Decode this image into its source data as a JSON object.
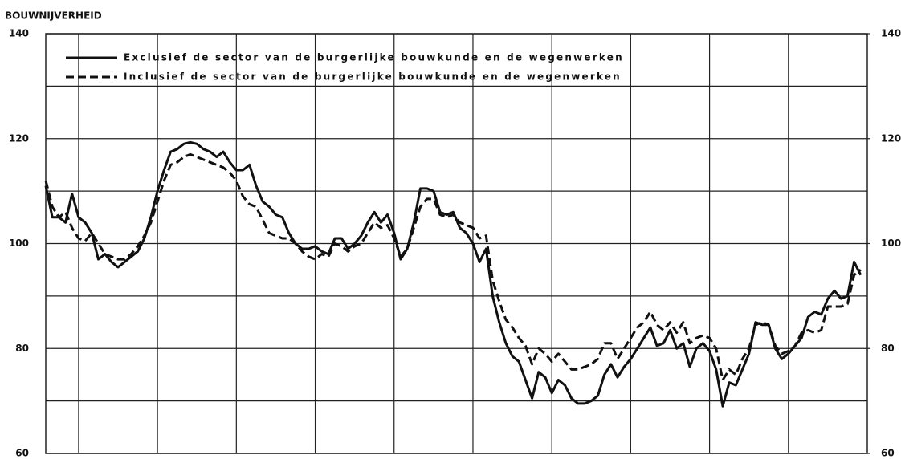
{
  "chart_data": {
    "type": "line",
    "title": "BOUWNIJVERHEID",
    "x": [
      0,
      1,
      2,
      3,
      4,
      5,
      6,
      7,
      8,
      9,
      10,
      11,
      12,
      13,
      14,
      15,
      16,
      17,
      18,
      19,
      20,
      21,
      22,
      23,
      24,
      25,
      26,
      27,
      28,
      29,
      30,
      31,
      32,
      33,
      34,
      35,
      36,
      37,
      38,
      39,
      40,
      41,
      42,
      43,
      44,
      45,
      46,
      47,
      48,
      49,
      50,
      51,
      52,
      53,
      54,
      55,
      56,
      57,
      58,
      59,
      60,
      61,
      62,
      63,
      64,
      65,
      66,
      67,
      68,
      69,
      70,
      71,
      72,
      73,
      74,
      75,
      76,
      77,
      78,
      79,
      80,
      81,
      82,
      83,
      84,
      85,
      86,
      87,
      88,
      89,
      90,
      91,
      92,
      93,
      94,
      95,
      96,
      97,
      98,
      99,
      100,
      101,
      102,
      103,
      104,
      105,
      106,
      107,
      108,
      109,
      110,
      111,
      112,
      113,
      114,
      115,
      116,
      117,
      118,
      119,
      120,
      121,
      122,
      123,
      124
    ],
    "xlim": [
      0,
      125
    ],
    "xgrid": [
      5,
      17,
      29,
      41,
      53,
      65,
      77,
      89,
      101,
      113
    ],
    "series": [
      {
        "name": "Exclusief de sector van de burgerlijke bouwkunde en de wegenwerken",
        "color": "#111111",
        "dash": "solid",
        "values": [
          111,
          105,
          105,
          104,
          109.5,
          105,
          104,
          102,
          97,
          98,
          96.5,
          95.5,
          96.5,
          97.5,
          98.5,
          101,
          105,
          110,
          114,
          117.5,
          118,
          119,
          119.3,
          119,
          118,
          117.5,
          116.5,
          117.5,
          115.5,
          114,
          114,
          115,
          111,
          108,
          107,
          105.5,
          105,
          102,
          100,
          99,
          99,
          99.5,
          98.5,
          98,
          101,
          101,
          99,
          100,
          101.5,
          104,
          106,
          104,
          105.5,
          102,
          97,
          99,
          104,
          110.5,
          110.5,
          110,
          106,
          105.5,
          106,
          103,
          102,
          100,
          96.5,
          99,
          90,
          85,
          81,
          78.5,
          77.5,
          74,
          70.5,
          75.5,
          74.5,
          71.5,
          74,
          73,
          70.5,
          69.5,
          69.5,
          70,
          71,
          75,
          77,
          74.5,
          76.5,
          78,
          80,
          82,
          84,
          80.5,
          81,
          83.5,
          80,
          81,
          76.5,
          80,
          81,
          79.5,
          76,
          69,
          73.5,
          73,
          76,
          79,
          85,
          84.5,
          84.5,
          80,
          78,
          79,
          80.5,
          82,
          86,
          87,
          86.5,
          89.5,
          91,
          89.5,
          90,
          96.5,
          94
        ]
      },
      {
        "name": "Inclusief de sector van de burgerlijke bouwkunde en de wegenwerken",
        "color": "#111111",
        "dash": "dashed",
        "values": [
          112,
          107,
          105,
          106,
          103,
          101,
          100.5,
          102,
          100,
          98,
          97.5,
          97,
          97,
          98,
          99.5,
          101.5,
          104,
          108,
          112,
          115,
          115.5,
          116.5,
          117,
          116.5,
          116,
          115.5,
          115,
          114.5,
          113.5,
          112,
          109,
          107.5,
          107,
          104.5,
          102,
          101.5,
          101,
          101,
          100,
          98.5,
          97.5,
          97,
          98,
          97.5,
          100,
          99.5,
          98.5,
          99.5,
          100,
          102,
          104,
          103,
          103.5,
          101,
          97.5,
          99,
          103,
          107,
          108.5,
          108.5,
          105.5,
          105,
          105.5,
          104,
          103.5,
          103,
          101,
          101.5,
          93,
          89,
          85.5,
          84,
          82,
          80.5,
          77,
          80,
          79,
          77.5,
          79,
          77.5,
          76,
          76,
          76.5,
          77,
          78,
          81,
          81,
          78,
          80,
          82,
          84,
          85,
          87,
          84.5,
          83.5,
          85,
          83,
          85,
          81,
          82,
          82.5,
          82,
          80,
          74,
          76,
          75,
          78,
          80,
          84.5,
          85,
          84.5,
          80.5,
          79,
          79.5,
          80.5,
          83,
          83.5,
          83,
          83.5,
          88,
          88,
          88,
          88.5,
          94,
          95
        ]
      }
    ],
    "ylim": [
      60,
      140
    ],
    "yticks": [
      60,
      80,
      100,
      120,
      140
    ],
    "y2lim": [
      60,
      140
    ],
    "y2ticks": [
      60,
      80,
      100,
      120,
      140
    ],
    "minor_yticks": [
      70,
      90,
      110,
      130
    ],
    "grid": true,
    "legend": "top-left"
  }
}
